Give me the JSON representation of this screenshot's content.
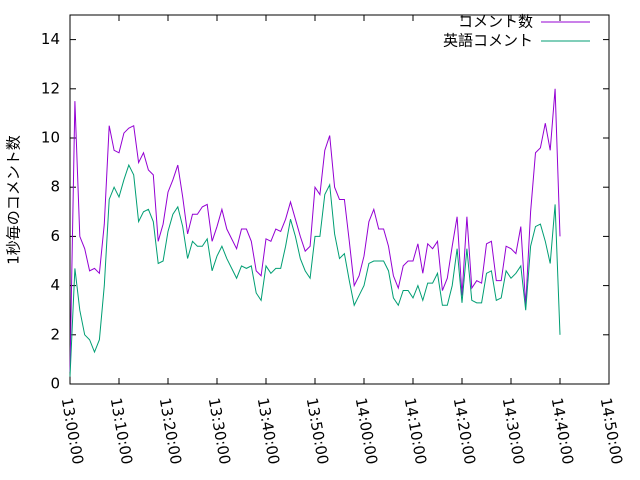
{
  "chart_data": {
    "type": "line",
    "y_label": "1秒毎のコメント数",
    "x": [
      "13:00:00",
      "13:01:00",
      "13:02:00",
      "13:03:00",
      "13:04:00",
      "13:05:00",
      "13:06:00",
      "13:07:00",
      "13:08:00",
      "13:09:00",
      "13:10:00",
      "13:11:00",
      "13:12:00",
      "13:13:00",
      "13:14:00",
      "13:15:00",
      "13:16:00",
      "13:17:00",
      "13:18:00",
      "13:19:00",
      "13:20:00",
      "13:21:00",
      "13:22:00",
      "13:23:00",
      "13:24:00",
      "13:25:00",
      "13:26:00",
      "13:27:00",
      "13:28:00",
      "13:29:00",
      "13:30:00",
      "13:31:00",
      "13:32:00",
      "13:33:00",
      "13:34:00",
      "13:35:00",
      "13:36:00",
      "13:37:00",
      "13:38:00",
      "13:39:00",
      "13:40:00",
      "13:41:00",
      "13:42:00",
      "13:43:00",
      "13:44:00",
      "13:45:00",
      "13:46:00",
      "13:47:00",
      "13:48:00",
      "13:49:00",
      "13:50:00",
      "13:51:00",
      "13:52:00",
      "13:53:00",
      "13:54:00",
      "13:55:00",
      "13:56:00",
      "13:57:00",
      "13:58:00",
      "13:59:00",
      "14:00:00",
      "14:01:00",
      "14:02:00",
      "14:03:00",
      "14:04:00",
      "14:05:00",
      "14:06:00",
      "14:07:00",
      "14:08:00",
      "14:09:00",
      "14:10:00",
      "14:11:00",
      "14:12:00",
      "14:13:00",
      "14:14:00",
      "14:15:00",
      "14:16:00",
      "14:17:00",
      "14:18:00",
      "14:19:00",
      "14:20:00",
      "14:21:00",
      "14:22:00",
      "14:23:00",
      "14:24:00",
      "14:25:00",
      "14:26:00",
      "14:27:00",
      "14:28:00",
      "14:29:00",
      "14:30:00",
      "14:31:00",
      "14:32:00",
      "14:33:00",
      "14:34:00",
      "14:35:00",
      "14:36:00",
      "14:37:00",
      "14:38:00",
      "14:39:00",
      "14:40:00"
    ],
    "series": [
      {
        "name": "コメント数",
        "color": "#9400d3",
        "values": [
          0.5,
          11.5,
          6,
          5.5,
          4.6,
          4.7,
          4.5,
          6.5,
          10.5,
          9.5,
          9.4,
          10.2,
          10.4,
          10.5,
          9,
          9.4,
          8.7,
          8.5,
          5.8,
          6.5,
          7.8,
          8.3,
          8.9,
          7.6,
          6.1,
          6.9,
          6.9,
          7.2,
          7.3,
          5.8,
          6.4,
          7.1,
          6.3,
          5.9,
          5.5,
          6.3,
          6.3,
          5.8,
          4.6,
          4.4,
          5.9,
          5.8,
          6.3,
          6.2,
          6.7,
          7.4,
          6.7,
          6,
          5.4,
          5.6,
          8,
          7.7,
          9.5,
          10.1,
          8,
          7.5,
          7.5,
          5.8,
          4,
          4.4,
          5.2,
          6.6,
          7.1,
          6.3,
          6.3,
          5.6,
          4.4,
          3.9,
          4.8,
          5,
          5,
          5.7,
          4.5,
          5.7,
          5.5,
          5.8,
          3.8,
          4.3,
          5.6,
          6.8,
          3.6,
          6.8,
          3.9,
          4.2,
          4.1,
          5.7,
          5.8,
          4.2,
          4.2,
          5.6,
          5.5,
          5.3,
          6.4,
          3.2,
          7,
          9.4,
          9.6,
          10.6,
          9.5,
          12,
          6
        ]
      },
      {
        "name": "英語コメント",
        "color": "#009e73",
        "values": [
          0.3,
          4.7,
          3,
          2,
          1.8,
          1.3,
          1.8,
          4,
          7.5,
          8,
          7.6,
          8.3,
          8.9,
          8.5,
          6.6,
          7,
          7.1,
          6.6,
          4.9,
          5,
          6.2,
          6.9,
          7.2,
          6.4,
          5.1,
          5.8,
          5.6,
          5.6,
          5.9,
          4.6,
          5.2,
          5.6,
          5.1,
          4.7,
          4.3,
          4.8,
          4.7,
          4.8,
          3.7,
          3.4,
          4.8,
          4.5,
          4.7,
          4.7,
          5.6,
          6.7,
          6,
          5.1,
          4.6,
          4.3,
          6,
          6,
          7.7,
          8.1,
          6.1,
          5.1,
          5.3,
          4.2,
          3.2,
          3.6,
          4,
          4.9,
          5,
          5,
          5,
          4.6,
          3.5,
          3.2,
          3.8,
          3.8,
          3.5,
          4,
          3.4,
          4.1,
          4.1,
          4.5,
          3.2,
          3.2,
          4,
          5.5,
          3.3,
          5.5,
          3.4,
          3.3,
          3.3,
          4.5,
          4.6,
          3.4,
          3.5,
          4.6,
          4.3,
          4.5,
          4.8,
          3,
          5.6,
          6.4,
          6.5,
          5.8,
          4.9,
          7.3,
          2
        ]
      }
    ],
    "xlim": [
      "13:00:00",
      "14:50:00"
    ],
    "xticks": [
      "13:00:00",
      "13:10:00",
      "13:20:00",
      "13:30:00",
      "13:40:00",
      "13:50:00",
      "14:00:00",
      "14:10:00",
      "14:20:00",
      "14:30:00",
      "14:40:00",
      "14:50:00"
    ],
    "ylim": [
      0,
      15
    ],
    "yticks": [
      0,
      2,
      4,
      6,
      8,
      10,
      12,
      14
    ],
    "legend": "top-right"
  }
}
